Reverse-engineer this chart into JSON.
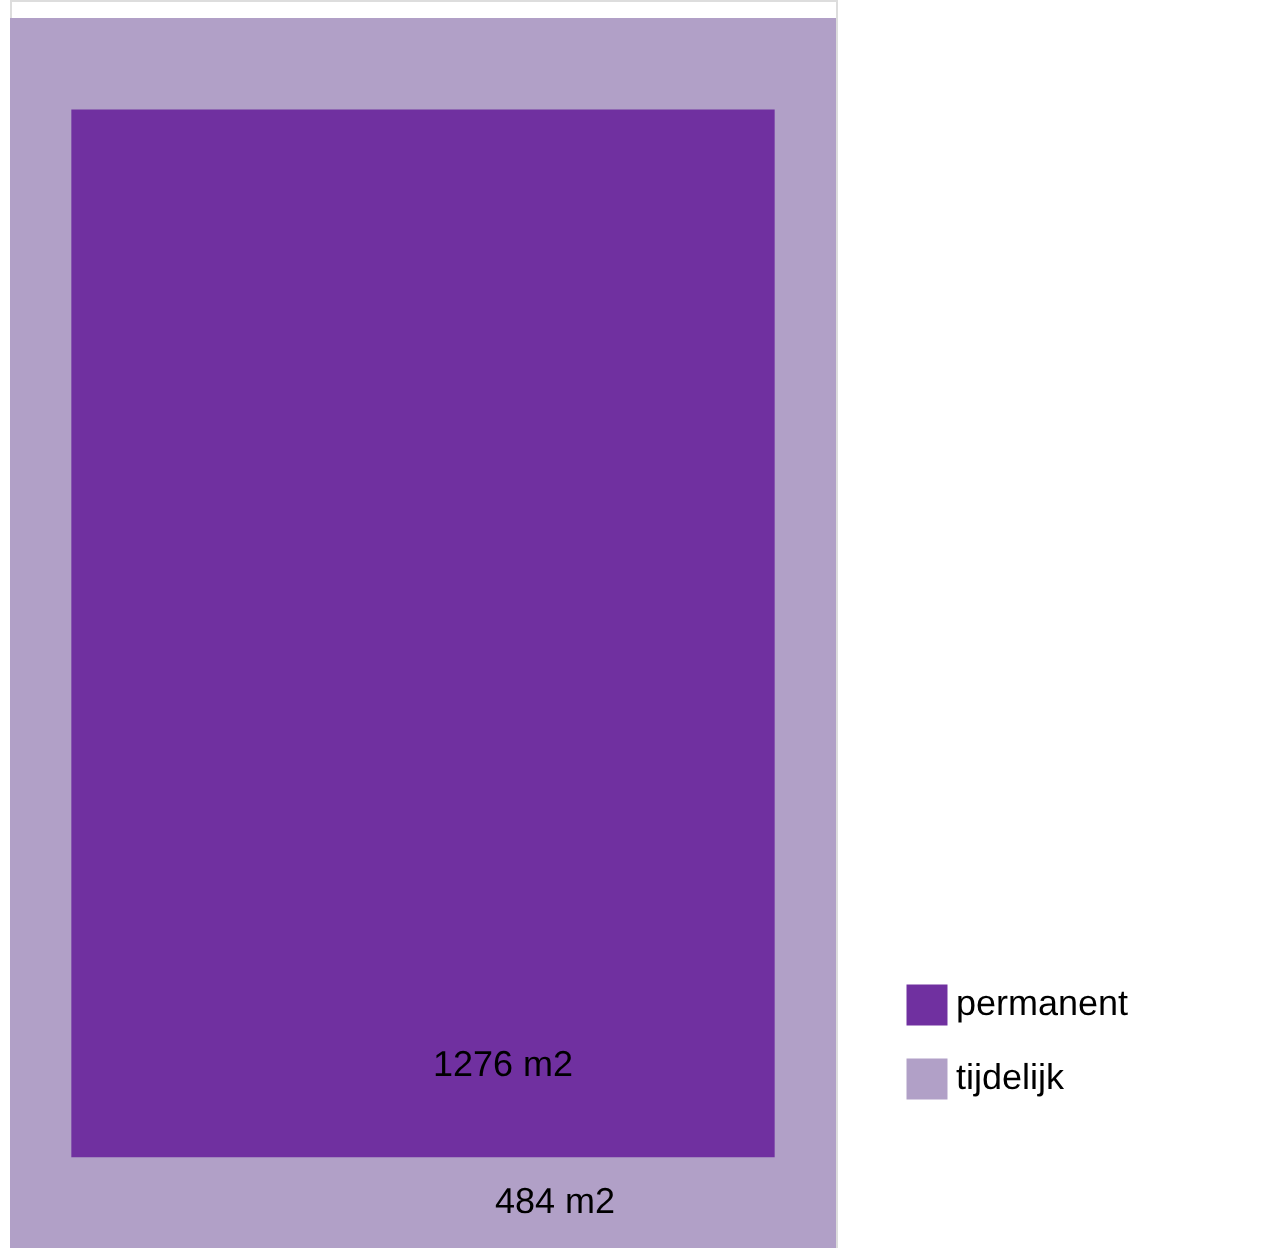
{
  "chart_data": {
    "type": "other",
    "categories": [
      "permanent",
      "tijdelijk"
    ],
    "values": [
      1276,
      484
    ],
    "colors": [
      "#7030a0",
      "#b1a0c7"
    ],
    "value_labels": [
      "1276 m2",
      "484 m2"
    ]
  }
}
